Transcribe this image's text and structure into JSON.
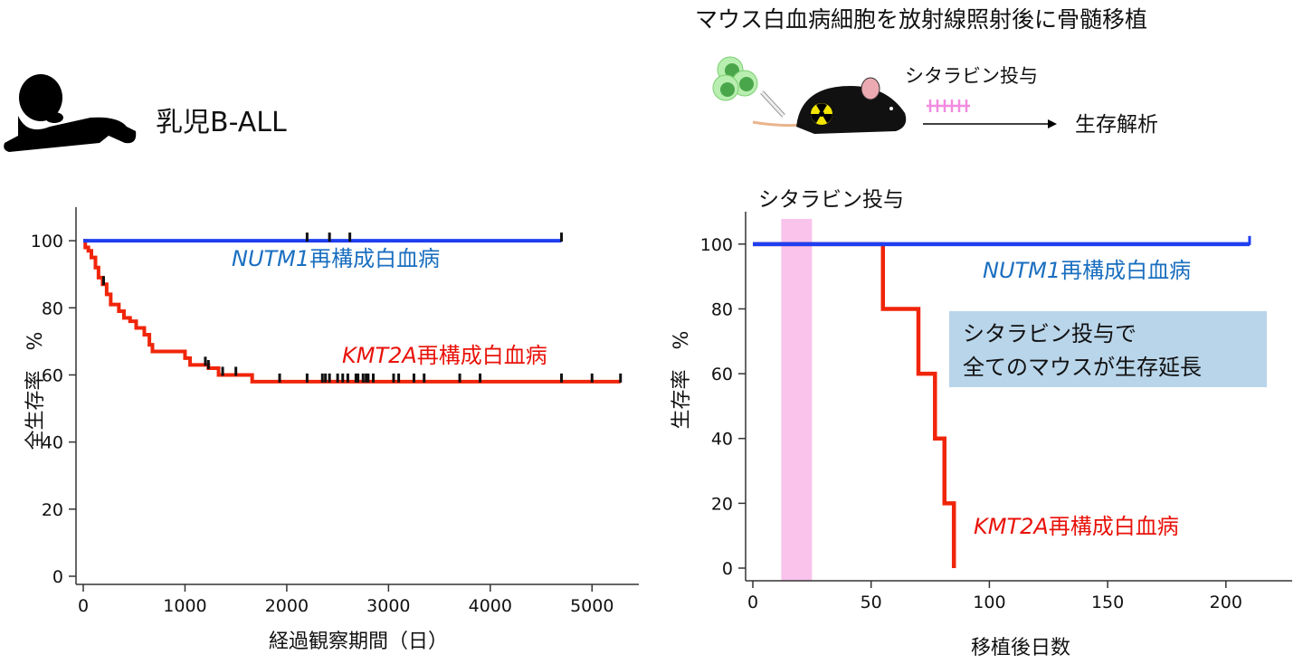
{
  "left_panel": {
    "title": "乳児B-ALL",
    "icon": "infant-silhouette-icon"
  },
  "right_panel": {
    "title": "マウス白血病細胞を放射線照射後に骨髄移植",
    "schema_treatment_label": "シタラビン投与",
    "schema_outcome_label": "生存解析",
    "icons": [
      "leukemia-cells-icon",
      "syringe-icon",
      "irradiated-mouse-icon",
      "radiation-icon",
      "dose-arrows-icon",
      "arrow-right-icon"
    ],
    "band_label": "シタラビン投与",
    "callout": {
      "line1": "シタラビン投与で",
      "line2": "全てのマウスが生存延長",
      "bg": "#b9d5ea"
    }
  },
  "chart_data": [
    {
      "type": "line",
      "subtype": "kaplan-meier",
      "xlabel": "経過観察期間（日）",
      "ylabel": "全生存率　%",
      "xlim": [
        0,
        5460
      ],
      "ylim": [
        0,
        110
      ],
      "xticks": [
        0,
        1000,
        2000,
        3000,
        4000,
        5000
      ],
      "yticks": [
        0,
        20,
        40,
        60,
        80,
        100
      ],
      "grid": false,
      "series": [
        {
          "name_gene": "NUTM1",
          "name_suffix": "再構成白血病",
          "color": "#1f3ff0",
          "label_color": "#1a6fc0",
          "steps": [
            [
              0,
              100
            ]
          ],
          "end": 4700,
          "censored": [
            2200,
            2420,
            2620,
            4700
          ]
        },
        {
          "name_gene": "KMT2A",
          "name_suffix": "再構成白血病",
          "color": "#f0250a",
          "label_color": "#e8120a",
          "steps": [
            [
              0,
              100
            ],
            [
              20,
              98
            ],
            [
              50,
              97
            ],
            [
              80,
              95
            ],
            [
              120,
              92
            ],
            [
              150,
              89
            ],
            [
              190,
              87
            ],
            [
              230,
              84
            ],
            [
              270,
              81
            ],
            [
              350,
              79
            ],
            [
              400,
              77
            ],
            [
              460,
              76
            ],
            [
              520,
              74
            ],
            [
              600,
              72
            ],
            [
              650,
              69
            ],
            [
              680,
              67
            ],
            [
              1000,
              65
            ],
            [
              1050,
              63
            ],
            [
              1230,
              62
            ],
            [
              1330,
              60
            ],
            [
              1660,
              58
            ]
          ],
          "end": 5280,
          "censored": [
            200,
            1200,
            1230,
            1370,
            1500,
            1930,
            2200,
            2350,
            2380,
            2420,
            2500,
            2550,
            2600,
            2680,
            2700,
            2750,
            2780,
            2800,
            2850,
            3050,
            3100,
            3250,
            3350,
            3700,
            3900,
            4700,
            5000,
            5280
          ]
        }
      ]
    },
    {
      "type": "line",
      "subtype": "kaplan-meier",
      "xlabel": "移植後日数",
      "ylabel": "生存率　%",
      "xlim": [
        0,
        228
      ],
      "ylim": [
        0,
        110
      ],
      "xticks": [
        0,
        50,
        100,
        150,
        200
      ],
      "yticks": [
        0,
        20,
        40,
        60,
        80,
        100
      ],
      "grid": false,
      "shaded_band": {
        "from": 12,
        "to": 25,
        "color": "#f9c3ec"
      },
      "series": [
        {
          "name_gene": "NUTM1",
          "name_suffix": "再構成白血病",
          "color": "#1f3ff0",
          "label_color": "#1a6fc0",
          "steps": [
            [
              0,
              100
            ]
          ],
          "end": 210,
          "censored": [
            210
          ]
        },
        {
          "name_gene": "KMT2A",
          "name_suffix": "再構成白血病",
          "color": "#f0250a",
          "label_color": "#e8120a",
          "steps": [
            [
              0,
              100
            ],
            [
              55,
              80
            ],
            [
              70,
              60
            ],
            [
              77,
              40
            ],
            [
              81,
              20
            ],
            [
              85,
              0
            ]
          ],
          "end": 85,
          "censored": []
        }
      ]
    }
  ]
}
